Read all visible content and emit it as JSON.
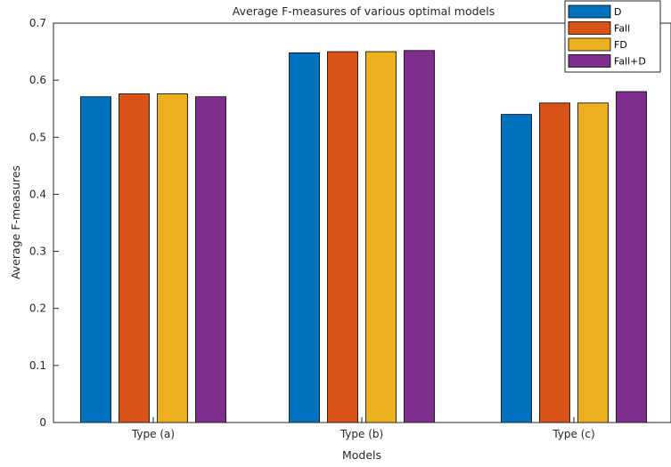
{
  "chart_data": {
    "type": "bar",
    "title": "Average F-measures of various optimal models",
    "xlabel": "Models",
    "ylabel": "Average F-measures",
    "categories": [
      "Type (a)",
      "Type (b)",
      "Type (c)"
    ],
    "series": [
      {
        "name": "D",
        "color": "#0072BD",
        "values": [
          0.571,
          0.648,
          0.54
        ]
      },
      {
        "name": "Fall",
        "color": "#D95319",
        "values": [
          0.576,
          0.65,
          0.56
        ]
      },
      {
        "name": "FD",
        "color": "#EDB120",
        "values": [
          0.576,
          0.65,
          0.56
        ]
      },
      {
        "name": "Fall+D",
        "color": "#7E2F8E",
        "values": [
          0.571,
          0.652,
          0.58
        ]
      }
    ],
    "ylim": [
      0,
      0.7
    ],
    "yticks": [
      "0",
      "0.1",
      "0.2",
      "0.3",
      "0.4",
      "0.5",
      "0.6",
      "0.7"
    ],
    "grid": false,
    "legend_position": "top-right"
  }
}
